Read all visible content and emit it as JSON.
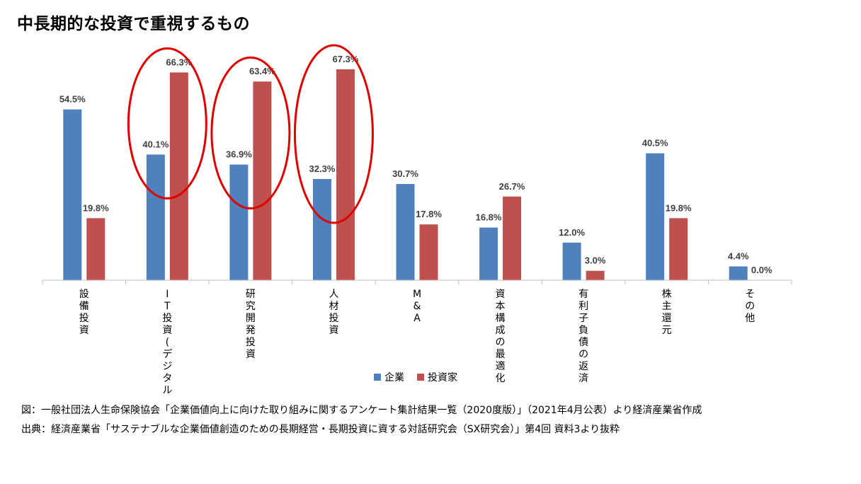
{
  "title": "中長期的な投資で重視するもの",
  "chart_data": {
    "type": "bar",
    "categories": [
      "設備投資",
      "IT投資(デジタル化)",
      "研究開発投資",
      "人材投資",
      "M&A",
      "資本構成の最適化",
      "有利子負債の返済",
      "株主還元",
      "その他"
    ],
    "series": [
      {
        "name": "企業",
        "color": "#4F81BD",
        "values": [
          54.5,
          40.1,
          36.9,
          32.3,
          30.7,
          16.8,
          12.0,
          40.5,
          4.4
        ]
      },
      {
        "name": "投資家",
        "color": "#C0504D",
        "values": [
          19.8,
          66.3,
          63.4,
          67.3,
          17.8,
          26.7,
          3.0,
          19.8,
          0.0
        ]
      }
    ],
    "value_labels": [
      [
        "54.5%",
        "40.1%",
        "36.9%",
        "32.3%",
        "30.7%",
        "16.8%",
        "12.0%",
        "40.5%",
        "4.4%"
      ],
      [
        "19.8%",
        "66.3%",
        "63.4%",
        "67.3%",
        "17.8%",
        "26.7%",
        "3.0%",
        "19.8%",
        "0.0%"
      ]
    ],
    "ylim": [
      0,
      70
    ],
    "legend_position": "bottom",
    "highlighted_categories": [
      "IT投資(デジタル化)",
      "研究開発投資",
      "人材投資"
    ],
    "highlight_color": "#E00000"
  },
  "notes": {
    "line1": "図：一般社団法人生命保険協会「企業価値向上に向けた取り組みに関するアンケート集計結果一覧（2020度版）」（2021年4月公表）より経済産業省作成",
    "line2": "出典：経済産業省「サステナブルな企業価値創造のための長期経営・長期投資に資する対話研究会（SX研究会）」第4回 資料3より抜粋"
  }
}
